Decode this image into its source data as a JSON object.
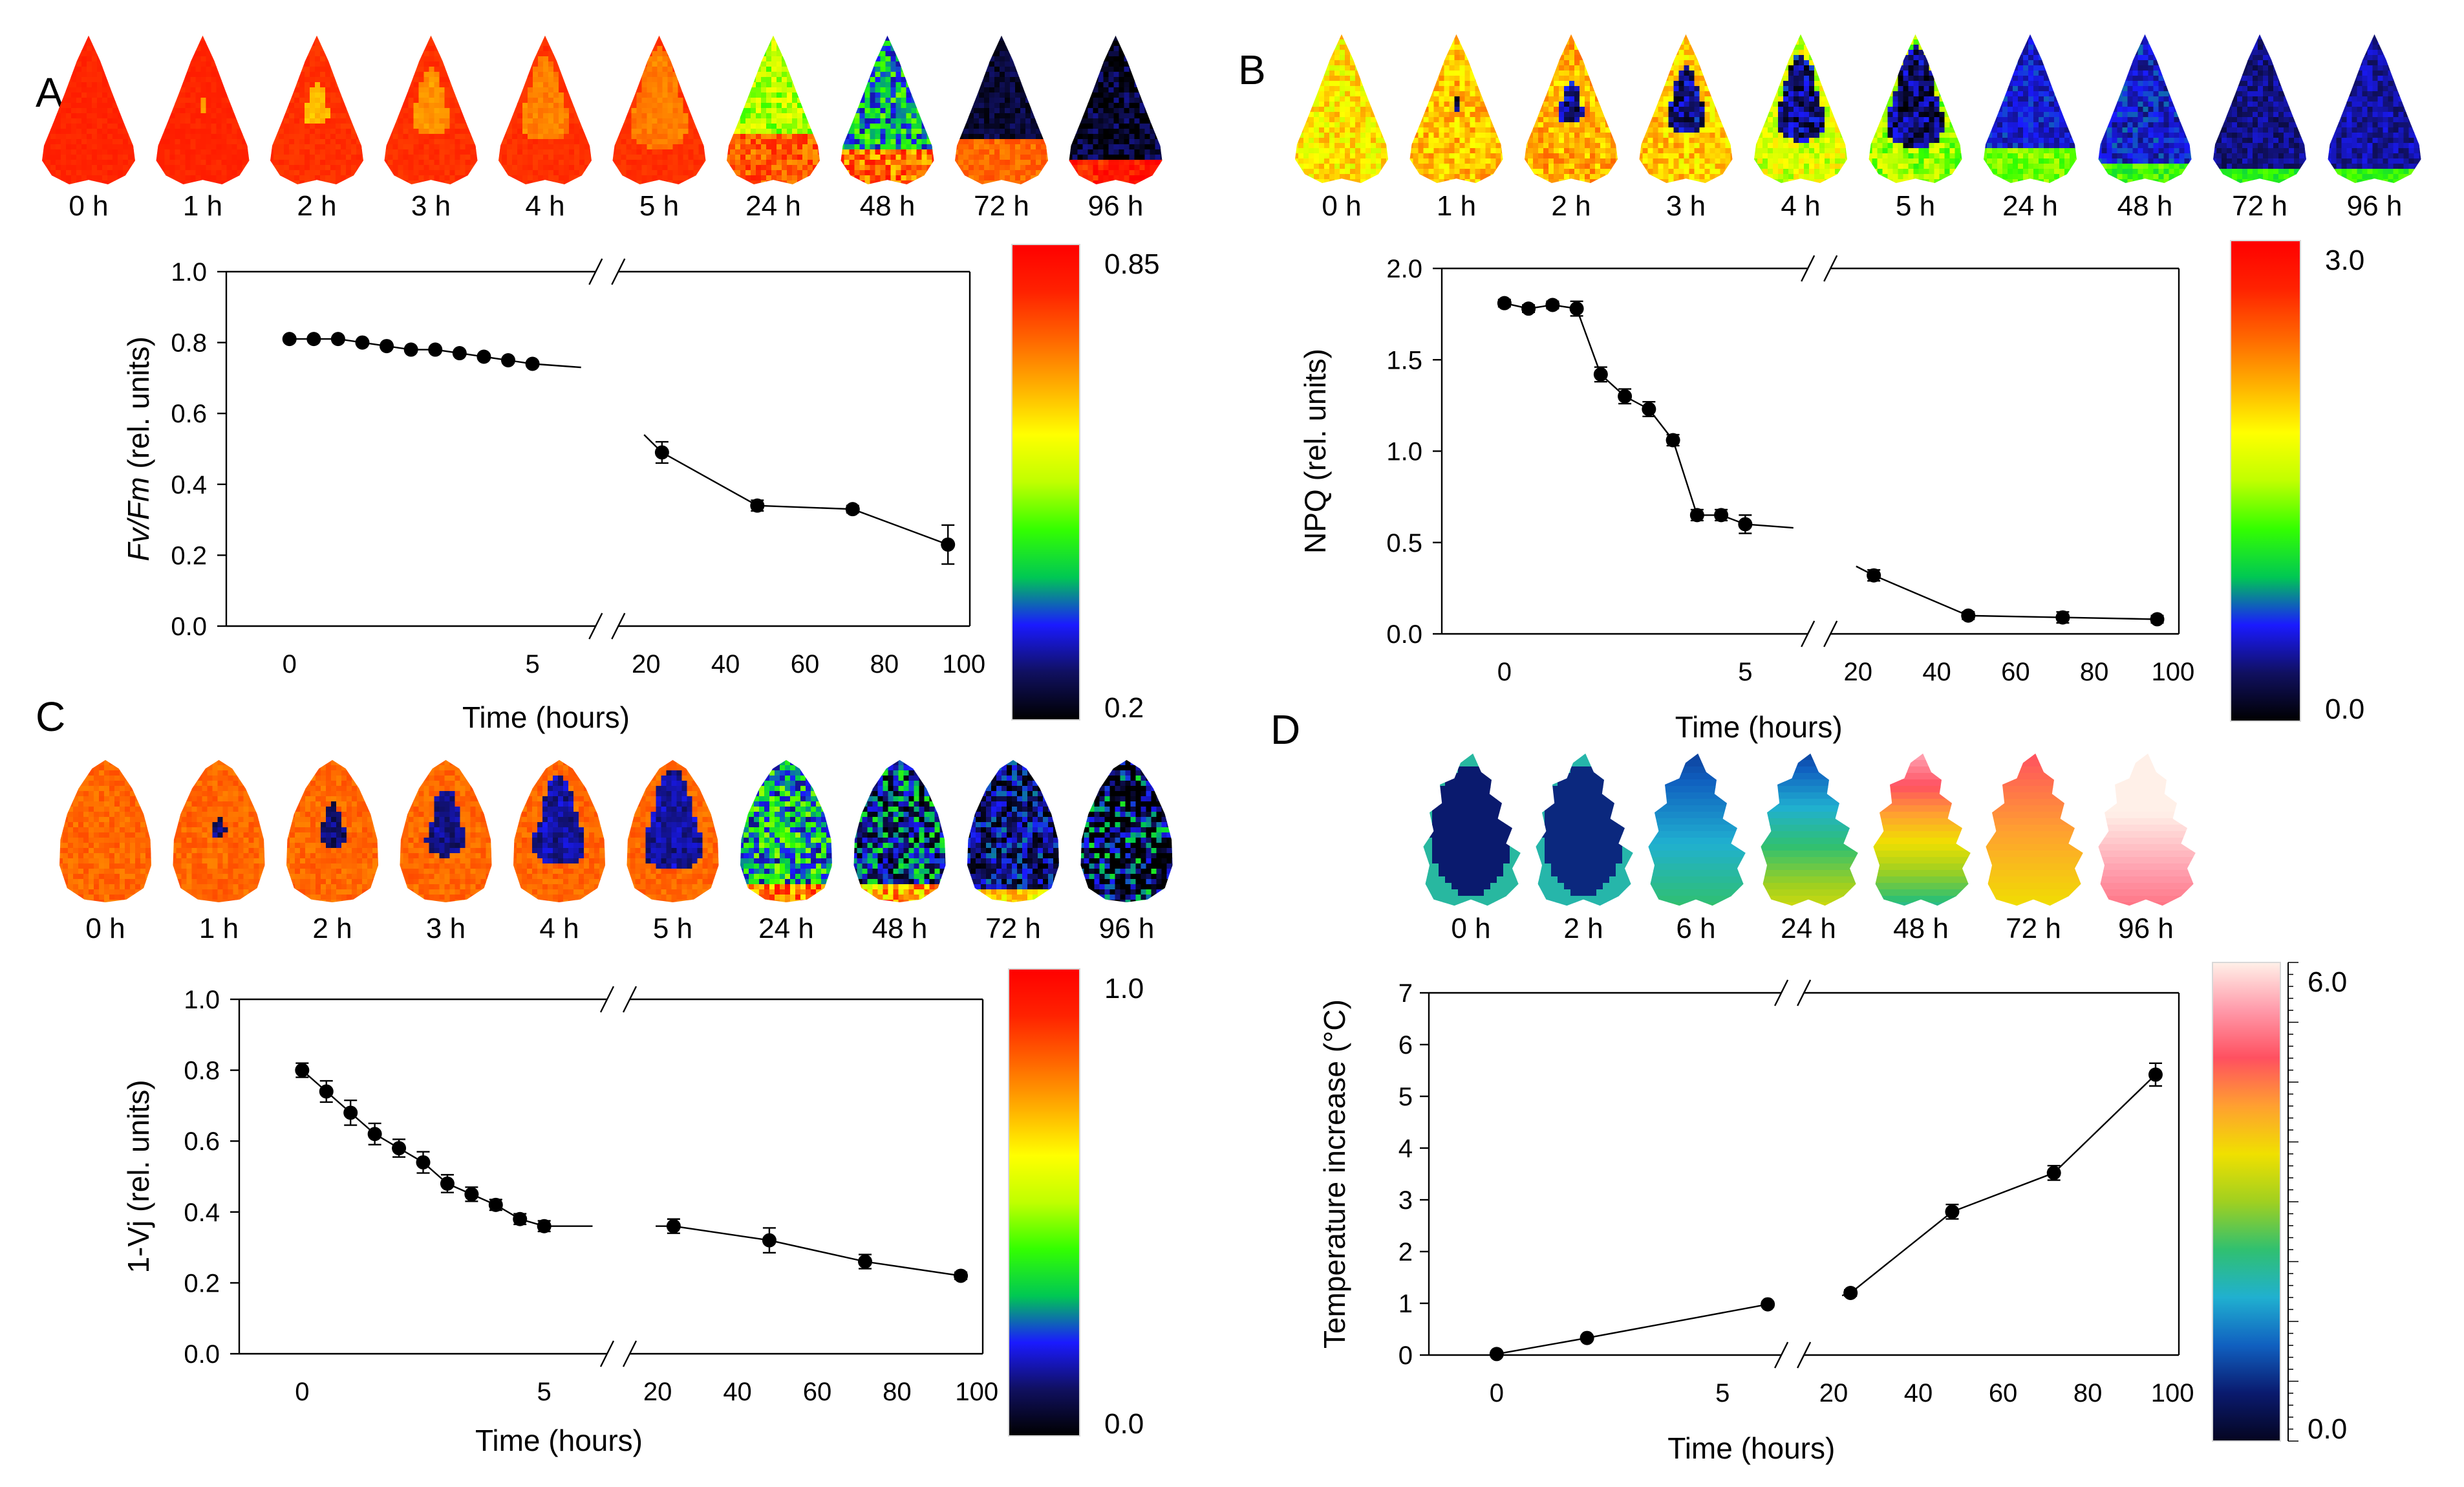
{
  "figure": {
    "background": "#ffffff"
  },
  "palettes": {
    "chlorophyll": [
      "#000000",
      "#101060",
      "#1a1aff",
      "#00c853",
      "#33ff00",
      "#c0ff00",
      "#ffff00",
      "#ffb000",
      "#ff6600",
      "#ff2200",
      "#ff0000"
    ],
    "thermal": [
      "#050520",
      "#0a1a6e",
      "#1060c0",
      "#20b0d0",
      "#30c070",
      "#a0d020",
      "#f0e000",
      "#ffa030",
      "#ff5060",
      "#ff9aaa",
      "#fff0e8"
    ]
  },
  "panels": [
    {
      "letter": "A",
      "leaf_times": [
        "0 h",
        "1 h",
        "2 h",
        "3 h",
        "4 h",
        "5 h",
        "24 h",
        "48 h",
        "72 h",
        "96 h"
      ],
      "leaf_shape": "sharp",
      "leaf_palette": "chlorophyll",
      "leaf_states": [
        {
          "base": 0.9,
          "spot": 0.0,
          "spot_value": 0.72,
          "dark": 0.0,
          "edge": 0.0,
          "edge_value": 0.0,
          "noise": 0.02
        },
        {
          "base": 0.9,
          "spot": 0.08,
          "spot_value": 0.72,
          "dark": 0.0,
          "edge": 0.0,
          "edge_value": 0.0,
          "noise": 0.02
        },
        {
          "base": 0.88,
          "spot": 0.28,
          "spot_value": 0.68,
          "dark": 0.0,
          "edge": 0.0,
          "edge_value": 0.0,
          "noise": 0.02
        },
        {
          "base": 0.88,
          "spot": 0.42,
          "spot_value": 0.74,
          "dark": 0.0,
          "edge": 0.0,
          "edge_value": 0.0,
          "noise": 0.02
        },
        {
          "base": 0.88,
          "spot": 0.55,
          "spot_value": 0.76,
          "dark": 0.0,
          "edge": 0.0,
          "edge_value": 0.0,
          "noise": 0.02
        },
        {
          "base": 0.88,
          "spot": 0.66,
          "spot_value": 0.77,
          "dark": 0.0,
          "edge": 0.0,
          "edge_value": 0.0,
          "noise": 0.02
        },
        {
          "base": 0.5,
          "spot": 0.0,
          "spot_value": 0.0,
          "dark": 0.0,
          "edge": 0.35,
          "edge_value": 0.82,
          "noise": 0.1
        },
        {
          "base": 0.3,
          "spot": 0.0,
          "spot_value": 0.0,
          "dark": 0.0,
          "edge": 0.25,
          "edge_value": 0.8,
          "noise": 0.16
        },
        {
          "base": 0.06,
          "spot": 0.0,
          "spot_value": 0.0,
          "dark": 0.0,
          "edge": 0.3,
          "edge_value": 0.8,
          "noise": 0.05
        },
        {
          "base": 0.04,
          "spot": 0.0,
          "spot_value": 0.0,
          "dark": 0.0,
          "edge": 0.18,
          "edge_value": 0.92,
          "noise": 0.09
        }
      ],
      "colorbar": {
        "top_label": "0.85",
        "bottom_label": "0.2",
        "palette": "chlorophyll"
      },
      "chart_data": {
        "type": "line",
        "ylabel": "Fv/Fm (rel. units)",
        "ylabel_italic_part": "Fv/Fm",
        "ylabel_rest": " (rel. units)",
        "xlabel": "Time (hours)",
        "ylim": [
          0.0,
          1.0
        ],
        "yticks": [
          "0.0",
          "0.2",
          "0.4",
          "0.6",
          "0.8",
          "1.0"
        ],
        "break_x": true,
        "left_segment": {
          "range": [
            -1.3,
            6.3
          ],
          "ticks": [
            "0",
            "5"
          ]
        },
        "right_segment": {
          "range": [
            13,
            101.5
          ],
          "ticks": [
            "20",
            "40",
            "60",
            "80",
            "100"
          ]
        },
        "series_left": {
          "x": [
            0,
            0.5,
            1,
            1.5,
            2,
            2.5,
            3,
            3.5,
            4,
            4.5,
            5
          ],
          "y": [
            0.81,
            0.81,
            0.81,
            0.8,
            0.79,
            0.78,
            0.78,
            0.77,
            0.76,
            0.75,
            0.74
          ],
          "err": [
            0.005,
            0.005,
            0.005,
            0.005,
            0.005,
            0.005,
            0.005,
            0.005,
            0.005,
            0.005,
            0.005
          ],
          "line_extends_to": [
            6.0,
            0.73
          ]
        },
        "series_right": {
          "x": [
            24,
            48,
            72,
            96
          ],
          "y": [
            0.49,
            0.34,
            0.33,
            0.23
          ],
          "err": [
            0.03,
            0.015,
            0.01,
            0.055
          ],
          "line_starts_at": [
            19.5,
            0.54
          ]
        }
      }
    },
    {
      "letter": "B",
      "leaf_times": [
        "0 h",
        "1 h",
        "2 h",
        "3 h",
        "4 h",
        "5 h",
        "24 h",
        "48 h",
        "72 h",
        "96 h"
      ],
      "leaf_shape": "sharp",
      "leaf_palette": "chlorophyll",
      "leaf_states": [
        {
          "base": 0.62,
          "spot": 0.0,
          "spot_value": 0.1,
          "dark": 0.0,
          "edge": 0.0,
          "edge_value": 0.0,
          "noise": 0.1
        },
        {
          "base": 0.68,
          "spot": 0.1,
          "spot_value": 0.1,
          "dark": 0.0,
          "edge": 0.0,
          "edge_value": 0.0,
          "noise": 0.1
        },
        {
          "base": 0.7,
          "spot": 0.28,
          "spot_value": 0.12,
          "dark": 0.0,
          "edge": 0.0,
          "edge_value": 0.0,
          "noise": 0.1
        },
        {
          "base": 0.66,
          "spot": 0.44,
          "spot_value": 0.12,
          "dark": 0.0,
          "edge": 0.0,
          "edge_value": 0.0,
          "noise": 0.1
        },
        {
          "base": 0.55,
          "spot": 0.56,
          "spot_value": 0.12,
          "dark": 0.0,
          "edge": 0.0,
          "edge_value": 0.0,
          "noise": 0.1
        },
        {
          "base": 0.48,
          "spot": 0.66,
          "spot_value": 0.1,
          "dark": 0.0,
          "edge": 0.0,
          "edge_value": 0.0,
          "noise": 0.1
        },
        {
          "base": 0.18,
          "spot": 0.0,
          "spot_value": 0.0,
          "dark": 0.0,
          "edge": 0.22,
          "edge_value": 0.45,
          "noise": 0.06
        },
        {
          "base": 0.18,
          "spot": 0.0,
          "spot_value": 0.0,
          "dark": 0.0,
          "edge": 0.14,
          "edge_value": 0.4,
          "noise": 0.07
        },
        {
          "base": 0.12,
          "spot": 0.0,
          "spot_value": 0.0,
          "dark": 0.0,
          "edge": 0.1,
          "edge_value": 0.38,
          "noise": 0.05
        },
        {
          "base": 0.14,
          "spot": 0.0,
          "spot_value": 0.0,
          "dark": 0.0,
          "edge": 0.08,
          "edge_value": 0.4,
          "noise": 0.05
        }
      ],
      "colorbar": {
        "top_label": "3.0",
        "bottom_label": "0.0",
        "palette": "chlorophyll"
      },
      "chart_data": {
        "type": "line",
        "ylabel": "NPQ  (rel. units)",
        "xlabel": "Time (hours)",
        "ylim": [
          0.0,
          2.0
        ],
        "yticks": [
          "0.0",
          "0.5",
          "1.0",
          "1.5",
          "2.0"
        ],
        "break_x": true,
        "left_segment": {
          "range": [
            -1.3,
            6.3
          ],
          "ticks": [
            "0",
            "5"
          ]
        },
        "right_segment": {
          "range": [
            13,
            101.5
          ],
          "ticks": [
            "20",
            "40",
            "60",
            "80",
            "100"
          ]
        },
        "series_left": {
          "x": [
            0,
            0.5,
            1,
            1.5,
            2,
            2.5,
            3,
            3.5,
            4,
            4.5,
            5
          ],
          "y": [
            1.81,
            1.78,
            1.8,
            1.78,
            1.42,
            1.3,
            1.23,
            1.06,
            0.65,
            0.65,
            0.6
          ],
          "err": [
            0.02,
            0.02,
            0.02,
            0.04,
            0.04,
            0.04,
            0.04,
            0.03,
            0.03,
            0.03,
            0.05
          ],
          "line_extends_to": [
            6.0,
            0.58
          ]
        },
        "series_right": {
          "x": [
            24,
            48,
            72,
            96
          ],
          "y": [
            0.32,
            0.1,
            0.09,
            0.08
          ],
          "err": [
            0.03,
            0.02,
            0.03,
            0.02
          ],
          "line_starts_at": [
            19.5,
            0.37
          ]
        }
      }
    },
    {
      "letter": "C",
      "leaf_times": [
        "0 h",
        "1 h",
        "2 h",
        "3 h",
        "4 h",
        "5 h",
        "24 h",
        "48 h",
        "72 h",
        "96 h"
      ],
      "leaf_shape": "round",
      "leaf_palette": "chlorophyll",
      "leaf_states": [
        {
          "base": 0.8,
          "spot": 0.0,
          "spot_value": 0.08,
          "dark": 0.0,
          "edge": 0.0,
          "edge_value": 0.0,
          "noise": 0.04
        },
        {
          "base": 0.8,
          "spot": 0.16,
          "spot_value": 0.1,
          "dark": 0.0,
          "edge": 0.0,
          "edge_value": 0.0,
          "noise": 0.04
        },
        {
          "base": 0.8,
          "spot": 0.3,
          "spot_value": 0.1,
          "dark": 0.0,
          "edge": 0.0,
          "edge_value": 0.0,
          "noise": 0.04
        },
        {
          "base": 0.8,
          "spot": 0.46,
          "spot_value": 0.12,
          "dark": 0.0,
          "edge": 0.0,
          "edge_value": 0.0,
          "noise": 0.04
        },
        {
          "base": 0.8,
          "spot": 0.6,
          "spot_value": 0.14,
          "dark": 0.0,
          "edge": 0.0,
          "edge_value": 0.0,
          "noise": 0.04
        },
        {
          "base": 0.8,
          "spot": 0.68,
          "spot_value": 0.14,
          "dark": 0.0,
          "edge": 0.0,
          "edge_value": 0.0,
          "noise": 0.04
        },
        {
          "base": 0.3,
          "spot": 0.0,
          "spot_value": 0.0,
          "dark": 0.0,
          "edge": 0.14,
          "edge_value": 0.78,
          "noise": 0.18
        },
        {
          "base": 0.18,
          "spot": 0.0,
          "spot_value": 0.0,
          "dark": 0.0,
          "edge": 0.14,
          "edge_value": 0.7,
          "noise": 0.2
        },
        {
          "base": 0.12,
          "spot": 0.0,
          "spot_value": 0.0,
          "dark": 0.0,
          "edge": 0.1,
          "edge_value": 0.62,
          "noise": 0.14
        },
        {
          "base": 0.1,
          "spot": 0.0,
          "spot_value": 0.0,
          "dark": 0.0,
          "edge": 0.0,
          "edge_value": 0.0,
          "noise": 0.26
        }
      ],
      "colorbar": {
        "top_label": "1.0",
        "bottom_label": "0.0",
        "palette": "chlorophyll"
      },
      "chart_data": {
        "type": "line",
        "ylabel": "1-Vj  (rel. units)",
        "xlabel": "Time (hours)",
        "ylim": [
          0.0,
          1.0
        ],
        "yticks": [
          "0.0",
          "0.2",
          "0.4",
          "0.6",
          "0.8",
          "1.0"
        ],
        "break_x": true,
        "left_segment": {
          "range": [
            -1.3,
            6.3
          ],
          "ticks": [
            "0",
            "5"
          ]
        },
        "right_segment": {
          "range": [
            13,
            101.5
          ],
          "ticks": [
            "20",
            "40",
            "60",
            "80",
            "100"
          ]
        },
        "series_left": {
          "x": [
            0,
            0.5,
            1,
            1.5,
            2,
            2.5,
            3,
            3.5,
            4,
            4.5,
            5
          ],
          "y": [
            0.8,
            0.74,
            0.68,
            0.62,
            0.58,
            0.54,
            0.48,
            0.45,
            0.42,
            0.38,
            0.36
          ],
          "err": [
            0.02,
            0.03,
            0.035,
            0.03,
            0.025,
            0.03,
            0.025,
            0.02,
            0.015,
            0.015,
            0.015
          ],
          "line_extends_to": [
            6.0,
            0.36
          ]
        },
        "series_right": {
          "x": [
            24,
            48,
            72,
            96
          ],
          "y": [
            0.36,
            0.32,
            0.26,
            0.22
          ],
          "err": [
            0.02,
            0.035,
            0.02,
            0.01
          ],
          "line_starts_at": [
            19.5,
            0.36
          ]
        }
      }
    },
    {
      "letter": "D",
      "leaf_times": [
        "0 h",
        "2 h",
        "6 h",
        "24 h",
        "48 h",
        "72 h",
        "96 h"
      ],
      "leaf_shape": "serrated",
      "leaf_palette": "thermal",
      "leaf_states": [
        {
          "base": 0.1,
          "spot": 0.0,
          "spot_value": 0.0,
          "dark": 0.0,
          "edge": 0.0,
          "edge_value": 0.0,
          "noise": 0.0,
          "gradient": 0.0,
          "rim": 0.25
        },
        {
          "base": 0.12,
          "spot": 0.0,
          "spot_value": 0.0,
          "dark": 0.0,
          "edge": 0.0,
          "edge_value": 0.0,
          "noise": 0.0,
          "gradient": 0.0,
          "rim": 0.22
        },
        {
          "base": 0.28,
          "spot": 0.0,
          "spot_value": 0.0,
          "dark": 0.0,
          "edge": 0.0,
          "edge_value": 0.0,
          "noise": 0.0,
          "gradient": 0.25,
          "rim": 0.0
        },
        {
          "base": 0.36,
          "spot": 0.0,
          "spot_value": 0.0,
          "dark": 0.0,
          "edge": 0.0,
          "edge_value": 0.0,
          "noise": 0.0,
          "gradient": 0.4,
          "rim": 0.0
        },
        {
          "base": 0.64,
          "spot": 0.0,
          "spot_value": 0.0,
          "dark": 0.0,
          "edge": 0.0,
          "edge_value": 0.0,
          "noise": 0.0,
          "gradient": -0.55,
          "rim": 0.0
        },
        {
          "base": 0.7,
          "spot": 0.0,
          "spot_value": 0.0,
          "dark": 0.0,
          "edge": 0.0,
          "edge_value": 0.0,
          "noise": 0.0,
          "gradient": -0.2,
          "rim": 0.0
        },
        {
          "base": 0.97,
          "spot": 0.0,
          "spot_value": 0.0,
          "dark": 0.0,
          "edge": 0.0,
          "edge_value": 0.0,
          "noise": 0.0,
          "gradient": -0.25,
          "rim": 0.0
        }
      ],
      "colorbar": {
        "top_label": "6.0",
        "bottom_label": "0.0",
        "palette": "thermal"
      },
      "chart_data": {
        "type": "line",
        "ylabel": "Temperature increase  (°C)",
        "xlabel": "Time (hours)",
        "ylim": [
          0,
          7
        ],
        "yticks": [
          "0",
          "1",
          "2",
          "3",
          "4",
          "5",
          "6",
          "7"
        ],
        "break_x": true,
        "left_segment": {
          "range": [
            -1.5,
            6.3
          ],
          "ticks": [
            "0",
            "5"
          ]
        },
        "right_segment": {
          "range": [
            13,
            101.5
          ],
          "ticks": [
            "20",
            "40",
            "60",
            "80",
            "100"
          ]
        },
        "series_left": {
          "x": [
            0,
            2,
            6
          ],
          "y": [
            0.02,
            0.33,
            0.98
          ],
          "err": [
            0.03,
            0.03,
            0.05
          ],
          "line_extends_to": [
            6.0,
            0.98
          ]
        },
        "series_right": {
          "x": [
            24,
            48,
            72,
            96
          ],
          "y": [
            1.2,
            2.77,
            3.52,
            5.42
          ],
          "err": [
            0.06,
            0.14,
            0.14,
            0.22
          ],
          "line_starts_at": [
            22.0,
            1.15
          ]
        }
      }
    }
  ]
}
